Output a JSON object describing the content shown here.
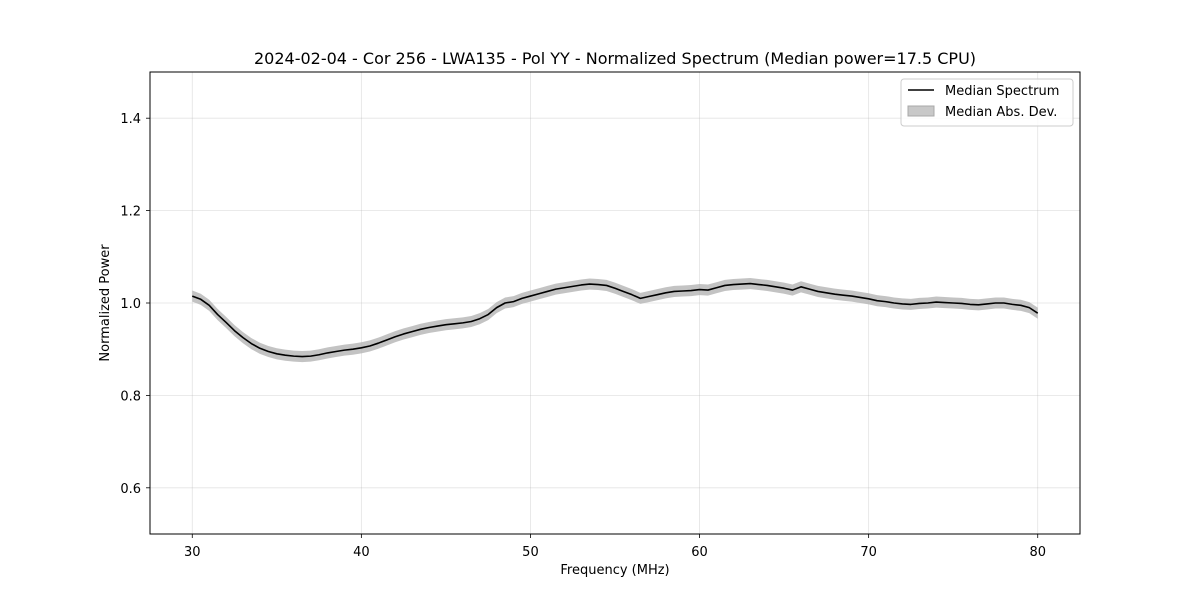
{
  "chart_data": {
    "type": "line",
    "title": "2024-02-04 - Cor 256 - LWA135 - Pol YY - Normalized Spectrum (Median power=17.5 CPU)",
    "xlabel": "Frequency (MHz)",
    "ylabel": "Normalized Power",
    "xlim": [
      27.5,
      82.5
    ],
    "ylim": [
      0.5,
      1.5
    ],
    "xticks": [
      30,
      40,
      50,
      60,
      70,
      80
    ],
    "yticks": [
      0.6,
      0.8,
      1.0,
      1.2,
      1.4
    ],
    "xtick_labels": [
      "30",
      "40",
      "50",
      "60",
      "70",
      "80"
    ],
    "ytick_labels": [
      "0.6",
      "0.8",
      "1.0",
      "1.2",
      "1.4"
    ],
    "grid": true,
    "legend_position": "top-right",
    "legend": [
      {
        "label": "Median Spectrum",
        "kind": "line"
      },
      {
        "label": "Median Abs. Dev.",
        "kind": "band"
      }
    ],
    "series": [
      {
        "name": "Median Spectrum",
        "color": "#000000",
        "x": [
          30,
          30.5,
          31,
          31.5,
          32,
          32.5,
          33,
          33.5,
          34,
          34.5,
          35,
          35.5,
          36,
          36.5,
          37,
          37.5,
          38,
          38.5,
          39,
          39.5,
          40,
          40.5,
          41,
          41.5,
          42,
          42.5,
          43,
          43.5,
          44,
          44.5,
          45,
          45.5,
          46,
          46.5,
          47,
          47.5,
          48,
          48.5,
          49,
          49.5,
          50,
          50.5,
          51,
          51.5,
          52,
          52.5,
          53,
          53.5,
          54,
          54.5,
          55,
          55.5,
          56,
          56.5,
          57,
          57.5,
          58,
          58.5,
          59,
          59.5,
          60,
          60.5,
          61,
          61.5,
          62,
          62.5,
          63,
          63.5,
          64,
          64.5,
          65,
          65.5,
          66,
          66.5,
          67,
          67.5,
          68,
          68.5,
          69,
          69.5,
          70,
          70.5,
          71,
          71.5,
          72,
          72.5,
          73,
          73.5,
          74,
          74.5,
          75,
          75.5,
          76,
          76.5,
          77,
          77.5,
          78,
          78.5,
          79,
          79.5,
          80
        ],
        "values": [
          1.015,
          1.008,
          0.995,
          0.975,
          0.958,
          0.94,
          0.925,
          0.912,
          0.902,
          0.895,
          0.89,
          0.887,
          0.885,
          0.884,
          0.885,
          0.888,
          0.892,
          0.895,
          0.898,
          0.9,
          0.903,
          0.907,
          0.913,
          0.92,
          0.927,
          0.933,
          0.938,
          0.943,
          0.947,
          0.95,
          0.953,
          0.955,
          0.957,
          0.96,
          0.966,
          0.975,
          0.99,
          1.0,
          1.003,
          1.01,
          1.015,
          1.02,
          1.025,
          1.03,
          1.033,
          1.036,
          1.039,
          1.041,
          1.04,
          1.038,
          1.032,
          1.025,
          1.018,
          1.01,
          1.014,
          1.018,
          1.022,
          1.025,
          1.026,
          1.027,
          1.029,
          1.028,
          1.033,
          1.038,
          1.04,
          1.041,
          1.042,
          1.04,
          1.038,
          1.035,
          1.032,
          1.028,
          1.035,
          1.03,
          1.025,
          1.022,
          1.019,
          1.017,
          1.015,
          1.012,
          1.009,
          1.005,
          1.003,
          1.0,
          0.998,
          0.997,
          0.999,
          1.0,
          1.002,
          1.001,
          1.0,
          0.999,
          0.997,
          0.996,
          0.998,
          1.0,
          1.0,
          0.997,
          0.995,
          0.99,
          0.978
        ],
        "mad": 0.012
      }
    ]
  }
}
